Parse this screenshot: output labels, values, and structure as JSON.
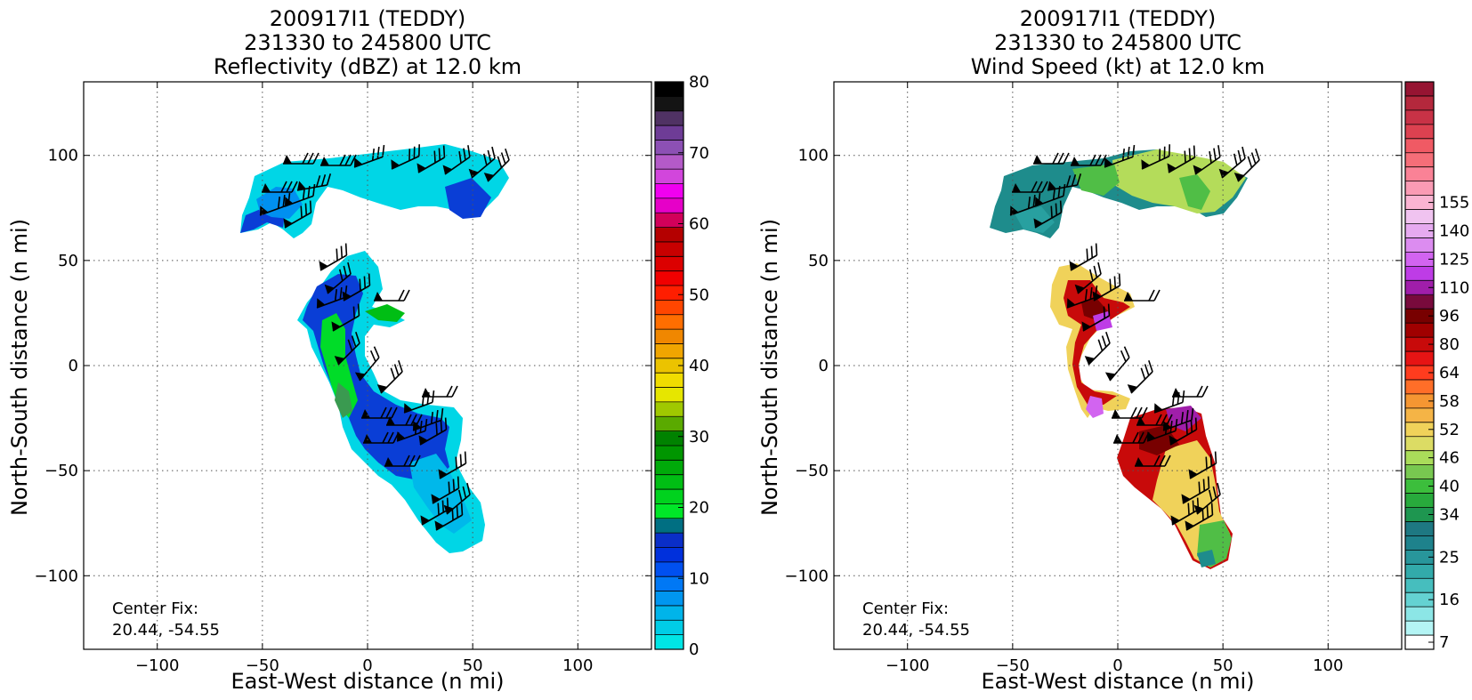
{
  "chart_data": [
    {
      "type": "heatmap",
      "title": [
        "200917I1 (TEDDY)",
        "231330 to 245800 UTC",
        "Reflectivity (dBZ) at 12.0 km"
      ],
      "xlabel": "East-West distance (n mi)",
      "ylabel": "North-South distance (n mi)",
      "xlim": [
        -135,
        135
      ],
      "ylim": [
        -135,
        135
      ],
      "xticks": [
        -100,
        -50,
        0,
        50,
        100
      ],
      "yticks": [
        -100,
        -50,
        0,
        50,
        100
      ],
      "grid": true,
      "annotation": [
        "Center Fix:",
        "20.44, -54.55"
      ],
      "center_fix": [
        20.44,
        -54.55
      ],
      "colorbar": {
        "min": 0,
        "max": 80,
        "tick_labels": [
          "0",
          "10",
          "20",
          "30",
          "40",
          "50",
          "60",
          "70",
          "80"
        ],
        "colors": [
          "#00e5e5",
          "#00cde6",
          "#00b4ea",
          "#0096f0",
          "#0078f5",
          "#0050f0",
          "#0030dc",
          "#0a2ec8",
          "#006f82",
          "#00e628",
          "#00d21e",
          "#00be14",
          "#00aa0a",
          "#009600",
          "#008200",
          "#5aaa00",
          "#a0c800",
          "#e6e600",
          "#f0dc00",
          "#ebc300",
          "#f0a500",
          "#f08700",
          "#ff6e00",
          "#ff4600",
          "#ff1e00",
          "#f00000",
          "#dc0000",
          "#c80000",
          "#b40000",
          "#d2005a",
          "#e600c8",
          "#f000f0",
          "#d246dc",
          "#b45ac8",
          "#8c50b4",
          "#6e3c96",
          "#503264",
          "#141414",
          "#000000"
        ]
      },
      "barbs": true
    },
    {
      "type": "heatmap",
      "title": [
        "200917I1 (TEDDY)",
        "231330 to 245800 UTC",
        "Wind Speed (kt) at 12.0 km"
      ],
      "xlabel": "East-West distance (n mi)",
      "ylabel": "North-South distance (n mi)",
      "xlim": [
        -135,
        135
      ],
      "ylim": [
        -135,
        135
      ],
      "xticks": [
        -100,
        -50,
        0,
        50,
        100
      ],
      "yticks": [
        -100,
        -50,
        0,
        50,
        100
      ],
      "grid": true,
      "annotation": [
        "Center Fix:",
        "20.44, -54.55"
      ],
      "center_fix": [
        20.44,
        -54.55
      ],
      "colorbar": {
        "tick_labels": [
          "7",
          "16",
          "25",
          "34",
          "40",
          "46",
          "52",
          "58",
          "64",
          "80",
          "96",
          "110",
          "125",
          "140",
          "155"
        ],
        "tick_bins": [
          0,
          3,
          6,
          9,
          11,
          13,
          15,
          17,
          19,
          21,
          23,
          25,
          27,
          29,
          31
        ],
        "colors": [
          "#ffffff",
          "#b4f5f5",
          "#8ce6e6",
          "#64d2d2",
          "#46bebe",
          "#32aaaa",
          "#28969b",
          "#1e828c",
          "#1e7882",
          "#1e9650",
          "#28aa3c",
          "#3cbe3c",
          "#78c850",
          "#aadc5a",
          "#dcdc64",
          "#f0d25a",
          "#f5b446",
          "#f59632",
          "#ff6e28",
          "#ff3c1e",
          "#e61414",
          "#c80a0a",
          "#a00000",
          "#780000",
          "#780a3c",
          "#a01eaa",
          "#be3ce6",
          "#d264f0",
          "#dc8cf0",
          "#e6aaf0",
          "#f0c3f0",
          "#fab4d2",
          "#fa9bb4",
          "#fa8296",
          "#f56e78",
          "#f05a64",
          "#dc4150",
          "#c83246",
          "#b4283c",
          "#961432"
        ]
      },
      "barbs": true
    }
  ]
}
